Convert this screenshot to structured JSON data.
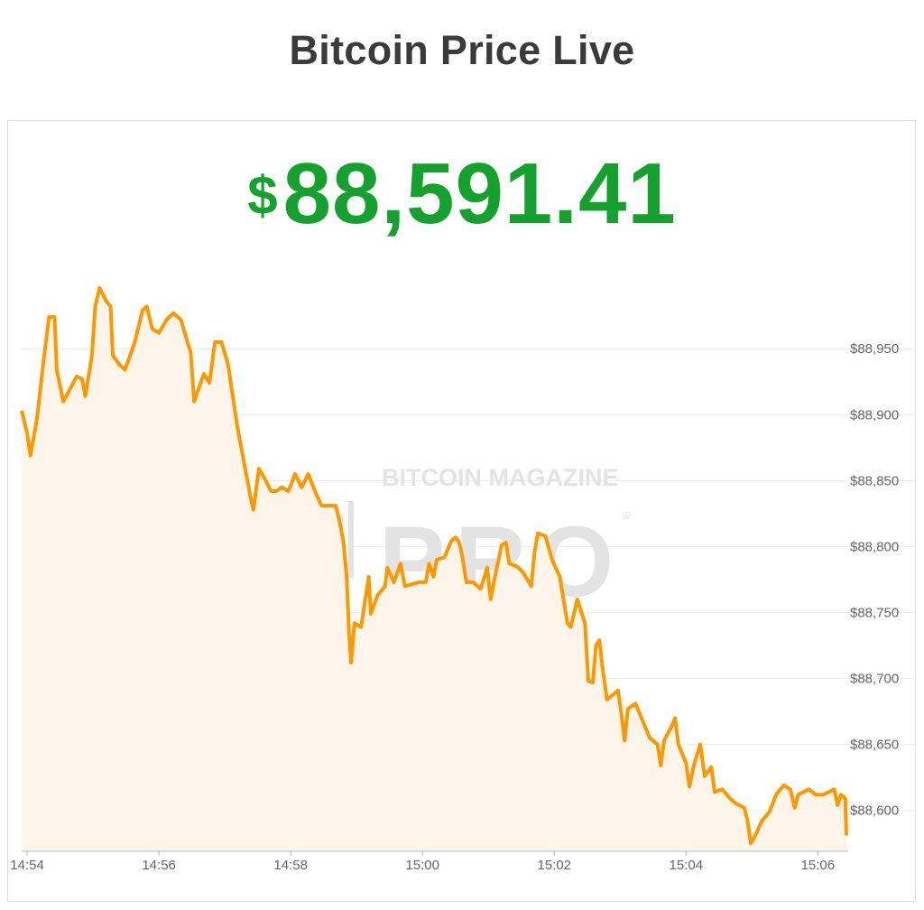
{
  "header": {
    "title": "Bitcoin Price Live"
  },
  "price": {
    "currency_symbol": "$",
    "value": "88,591.41",
    "color": "#14a12d"
  },
  "watermark": {
    "line1": "BITCOIN MAGAZINE",
    "line2": "PRO",
    "mark": "®"
  },
  "chart_data": {
    "type": "area",
    "title": "",
    "xlabel": "",
    "ylabel": "",
    "line_color": "#ff9800",
    "fill_color": "#fdf4ea",
    "grid": true,
    "y_axis_position": "right",
    "xlim": [
      "14:53:55",
      "15:06:26"
    ],
    "ylim": [
      88569,
      89009
    ],
    "x_ticks": [
      "14:54",
      "14:56",
      "14:58",
      "15:00",
      "15:02",
      "15:04",
      "15:06"
    ],
    "y_ticks": [
      88600,
      88650,
      88700,
      88750,
      88800,
      88850,
      88900,
      88950
    ],
    "y_tick_labels": [
      "$88,600",
      "$88,650",
      "$88,700",
      "$88,750",
      "$88,800",
      "$88,850",
      "$88,900",
      "$88,950"
    ],
    "series": [
      {
        "x": [
          "14:53:55",
          "14:54:00",
          "14:54:03",
          "14:54:09",
          "14:54:15",
          "14:54:20",
          "14:54:25",
          "14:54:27",
          "14:54:33",
          "14:54:40",
          "14:54:45",
          "14:54:50",
          "14:54:53",
          "14:54:59",
          "14:55:02",
          "14:55:06",
          "14:55:12",
          "14:55:16",
          "14:55:18",
          "14:55:24",
          "14:55:29",
          "14:55:32",
          "14:55:38",
          "14:55:45",
          "14:55:49",
          "14:55:54",
          "14:56:00",
          "14:56:07",
          "14:56:13",
          "14:56:20",
          "14:56:26",
          "14:56:29",
          "14:56:32",
          "14:56:41",
          "14:56:46",
          "14:56:51",
          "14:56:57",
          "14:57:03",
          "14:57:06",
          "14:57:11",
          "14:57:17",
          "14:57:24",
          "14:57:26",
          "14:57:31",
          "14:57:36",
          "14:57:42",
          "14:57:47",
          "14:57:52",
          "14:57:58",
          "14:58:04",
          "14:58:10",
          "14:58:16",
          "14:58:22",
          "14:58:28",
          "14:58:35",
          "14:58:41",
          "14:58:44",
          "14:58:48",
          "14:58:51",
          "14:58:53",
          "14:58:55",
          "14:58:58",
          "14:59:04",
          "14:59:11",
          "14:59:13",
          "14:59:19",
          "14:59:26",
          "14:59:28",
          "14:59:34",
          "14:59:40",
          "14:59:44",
          "14:59:57",
          "15:00:03",
          "15:00:06",
          "15:00:10",
          "15:00:13",
          "15:00:20",
          "15:00:26",
          "15:00:30",
          "15:00:33",
          "15:00:36",
          "15:00:40",
          "15:00:46",
          "15:00:53",
          "15:00:59",
          "15:01:02",
          "15:01:06",
          "15:01:12",
          "15:01:16",
          "15:01:19",
          "15:01:26",
          "15:01:32",
          "15:01:39",
          "15:01:42",
          "15:01:45",
          "15:01:52",
          "15:01:58",
          "15:02:05",
          "15:02:12",
          "15:02:15",
          "15:02:21",
          "15:02:28",
          "15:02:31",
          "15:02:35",
          "15:02:38",
          "15:02:41",
          "15:02:44",
          "15:02:48",
          "15:02:54",
          "15:02:58",
          "15:03:01",
          "15:03:04",
          "15:03:07",
          "15:03:14",
          "15:03:21",
          "15:03:27",
          "15:03:34",
          "15:03:37",
          "15:03:40",
          "15:03:47",
          "15:03:50",
          "15:03:53",
          "15:04:00",
          "15:04:03",
          "15:04:07",
          "15:04:13",
          "15:04:17",
          "15:04:23",
          "15:04:26",
          "15:04:33",
          "15:04:40",
          "15:04:46",
          "15:04:53",
          "15:04:56",
          "15:04:59",
          "15:05:03",
          "15:05:09",
          "15:05:16",
          "15:05:22",
          "15:05:29",
          "15:05:35",
          "15:05:39",
          "15:05:42",
          "15:05:52",
          "15:05:58",
          "15:06:05",
          "15:06:15",
          "15:06:18",
          "15:06:21",
          "15:06:25",
          "15:06:26"
        ],
        "y": [
          88903,
          88886,
          88869,
          88897,
          88941,
          88974,
          88974,
          88934,
          88910,
          88921,
          88929,
          88927,
          88914,
          88945,
          88982,
          88996,
          88986,
          88982,
          88945,
          88938,
          88934,
          88941,
          88955,
          88979,
          88982,
          88965,
          88962,
          88972,
          88977,
          88972,
          88955,
          88947,
          88910,
          88931,
          88924,
          88955,
          88955,
          88938,
          88921,
          88893,
          88866,
          88835,
          88828,
          88859,
          88852,
          88842,
          88842,
          88845,
          88842,
          88855,
          88845,
          88855,
          88842,
          88831,
          88831,
          88831,
          88821,
          88804,
          88777,
          88736,
          88712,
          88742,
          88739,
          88777,
          88749,
          88763,
          88770,
          88784,
          88773,
          88787,
          88770,
          88773,
          88773,
          88787,
          88777,
          88790,
          88792,
          88804,
          88807,
          88804,
          88794,
          88773,
          88773,
          88768,
          88784,
          88760,
          88777,
          88801,
          88803,
          88787,
          88785,
          88780,
          88770,
          88796,
          88810,
          88808,
          88790,
          88777,
          88742,
          88739,
          88760,
          88742,
          88698,
          88697,
          88725,
          88729,
          88708,
          88684,
          88688,
          88691,
          88674,
          88653,
          88677,
          88681,
          88667,
          88655,
          88650,
          88634,
          88653,
          88664,
          88670,
          88650,
          88636,
          88618,
          88634,
          88650,
          88626,
          88633,
          88614,
          88616,
          88609,
          88605,
          88602,
          88592,
          88575,
          88581,
          88592,
          88599,
          88612,
          88619,
          88616,
          88602,
          88612,
          88616,
          88612,
          88612,
          88616,
          88604,
          88612,
          88609,
          88581
        ]
      }
    ]
  }
}
